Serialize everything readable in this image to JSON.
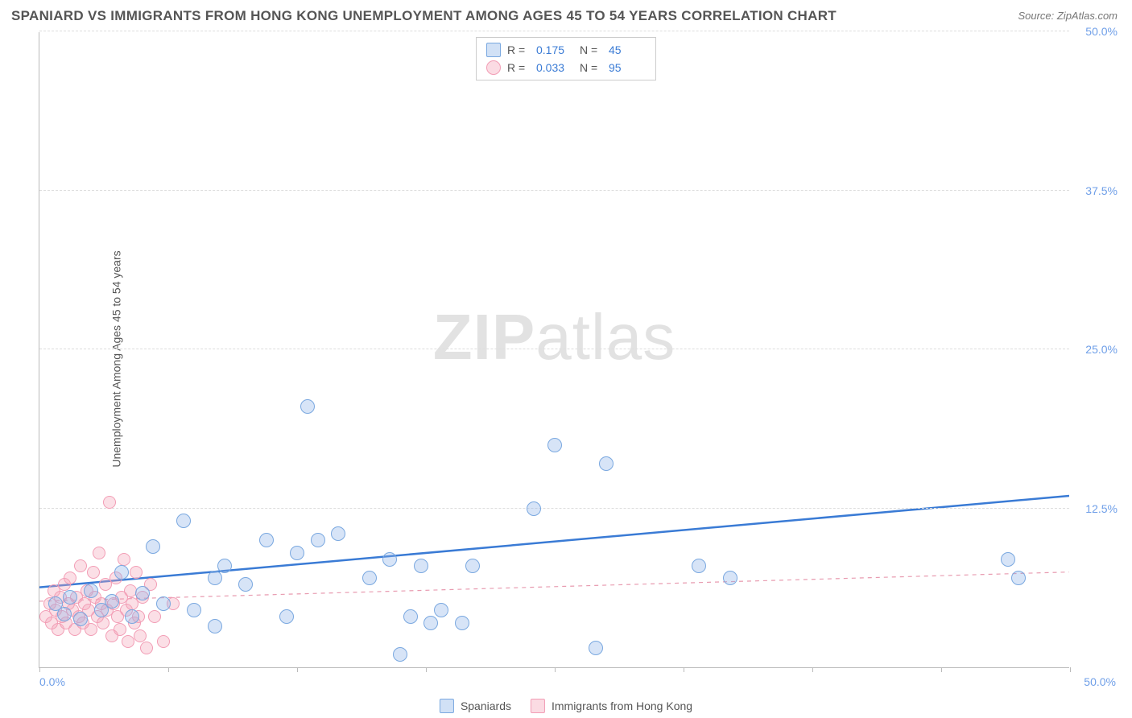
{
  "title": "SPANIARD VS IMMIGRANTS FROM HONG KONG UNEMPLOYMENT AMONG AGES 45 TO 54 YEARS CORRELATION CHART",
  "source": "Source: ZipAtlas.com",
  "y_axis_label": "Unemployment Among Ages 45 to 54 years",
  "watermark_a": "ZIP",
  "watermark_b": "atlas",
  "chart": {
    "type": "scatter",
    "xlim": [
      0,
      50
    ],
    "ylim": [
      0,
      50
    ],
    "x_ticks": [
      0,
      6.25,
      12.5,
      18.75,
      25,
      31.25,
      37.5,
      43.75,
      50
    ],
    "y_ticks": [
      12.5,
      25,
      37.5,
      50
    ],
    "x_tick_label_start": "0.0%",
    "x_tick_label_end": "50.0%",
    "y_tick_labels": [
      "12.5%",
      "25.0%",
      "37.5%",
      "50.0%"
    ],
    "grid_color": "#dddddd",
    "axis_color": "#bbbbbb",
    "background_color": "#ffffff",
    "marker_radius_blue": 9,
    "marker_radius_pink": 8,
    "series": [
      {
        "name": "Spaniards",
        "color_fill": "rgba(139,179,232,0.35)",
        "color_stroke": "#7aa8e0",
        "trend_color": "#3a7bd5",
        "trend_width": 2.5,
        "trend_dash": "none",
        "trend_y_intercept_at_x0": 6.3,
        "trend_y_at_x50": 13.5,
        "R": "0.175",
        "N": "45",
        "points": [
          [
            0.8,
            5.0
          ],
          [
            1.2,
            4.2
          ],
          [
            1.5,
            5.5
          ],
          [
            2.0,
            3.8
          ],
          [
            2.5,
            6.0
          ],
          [
            3.0,
            4.5
          ],
          [
            3.5,
            5.2
          ],
          [
            4.0,
            7.5
          ],
          [
            4.5,
            4.0
          ],
          [
            5.0,
            5.8
          ],
          [
            5.5,
            9.5
          ],
          [
            6.0,
            5.0
          ],
          [
            7.0,
            11.5
          ],
          [
            7.5,
            4.5
          ],
          [
            8.5,
            7.0
          ],
          [
            8.5,
            3.2
          ],
          [
            9.0,
            8.0
          ],
          [
            10.0,
            6.5
          ],
          [
            11.0,
            10.0
          ],
          [
            12.0,
            4.0
          ],
          [
            12.5,
            9.0
          ],
          [
            13.0,
            20.5
          ],
          [
            13.5,
            10.0
          ],
          [
            14.5,
            10.5
          ],
          [
            16.0,
            7.0
          ],
          [
            17.0,
            8.5
          ],
          [
            17.5,
            1.0
          ],
          [
            18.0,
            4.0
          ],
          [
            18.5,
            8.0
          ],
          [
            19.0,
            3.5
          ],
          [
            19.5,
            4.5
          ],
          [
            20.5,
            3.5
          ],
          [
            21.0,
            8.0
          ],
          [
            24.0,
            12.5
          ],
          [
            25.0,
            17.5
          ],
          [
            27.0,
            1.5
          ],
          [
            27.5,
            16.0
          ],
          [
            32.0,
            8.0
          ],
          [
            33.5,
            7.0
          ],
          [
            47.0,
            8.5
          ],
          [
            47.5,
            7.0
          ]
        ]
      },
      {
        "name": "Immigrants from Hong Kong",
        "color_fill": "rgba(244,164,184,0.35)",
        "color_stroke": "#f29db5",
        "trend_color": "#e89bb0",
        "trend_width": 1.2,
        "trend_dash": "5,5",
        "trend_y_intercept_at_x0": 5.2,
        "trend_y_at_x50": 7.5,
        "R": "0.033",
        "N": "95",
        "points": [
          [
            0.3,
            4.0
          ],
          [
            0.5,
            5.0
          ],
          [
            0.6,
            3.5
          ],
          [
            0.7,
            6.0
          ],
          [
            0.8,
            4.5
          ],
          [
            0.9,
            3.0
          ],
          [
            1.0,
            5.5
          ],
          [
            1.1,
            4.0
          ],
          [
            1.2,
            6.5
          ],
          [
            1.3,
            3.5
          ],
          [
            1.4,
            5.0
          ],
          [
            1.5,
            7.0
          ],
          [
            1.6,
            4.5
          ],
          [
            1.7,
            3.0
          ],
          [
            1.8,
            5.5
          ],
          [
            1.9,
            4.0
          ],
          [
            2.0,
            8.0
          ],
          [
            2.1,
            3.5
          ],
          [
            2.2,
            5.0
          ],
          [
            2.3,
            6.0
          ],
          [
            2.4,
            4.5
          ],
          [
            2.5,
            3.0
          ],
          [
            2.6,
            7.5
          ],
          [
            2.7,
            5.5
          ],
          [
            2.8,
            4.0
          ],
          [
            2.9,
            9.0
          ],
          [
            3.0,
            5.0
          ],
          [
            3.1,
            3.5
          ],
          [
            3.2,
            6.5
          ],
          [
            3.3,
            4.5
          ],
          [
            3.4,
            13.0
          ],
          [
            3.5,
            2.5
          ],
          [
            3.6,
            5.0
          ],
          [
            3.7,
            7.0
          ],
          [
            3.8,
            4.0
          ],
          [
            3.9,
            3.0
          ],
          [
            4.0,
            5.5
          ],
          [
            4.1,
            8.5
          ],
          [
            4.2,
            4.5
          ],
          [
            4.3,
            2.0
          ],
          [
            4.4,
            6.0
          ],
          [
            4.5,
            5.0
          ],
          [
            4.6,
            3.5
          ],
          [
            4.7,
            7.5
          ],
          [
            4.8,
            4.0
          ],
          [
            4.9,
            2.5
          ],
          [
            5.0,
            5.5
          ],
          [
            5.2,
            1.5
          ],
          [
            5.4,
            6.5
          ],
          [
            5.6,
            4.0
          ],
          [
            6.0,
            2.0
          ],
          [
            6.5,
            5.0
          ]
        ]
      }
    ]
  },
  "stats_box": {
    "rows": [
      {
        "swatch": "blue",
        "r_label": "R =",
        "r_val": "0.175",
        "n_label": "N =",
        "n_val": "45"
      },
      {
        "swatch": "pink",
        "r_label": "R =",
        "r_val": "0.033",
        "n_label": "N =",
        "n_val": "95"
      }
    ]
  },
  "legend": {
    "items": [
      {
        "swatch": "blue",
        "label": "Spaniards"
      },
      {
        "swatch": "pink",
        "label": "Immigrants from Hong Kong"
      }
    ]
  }
}
